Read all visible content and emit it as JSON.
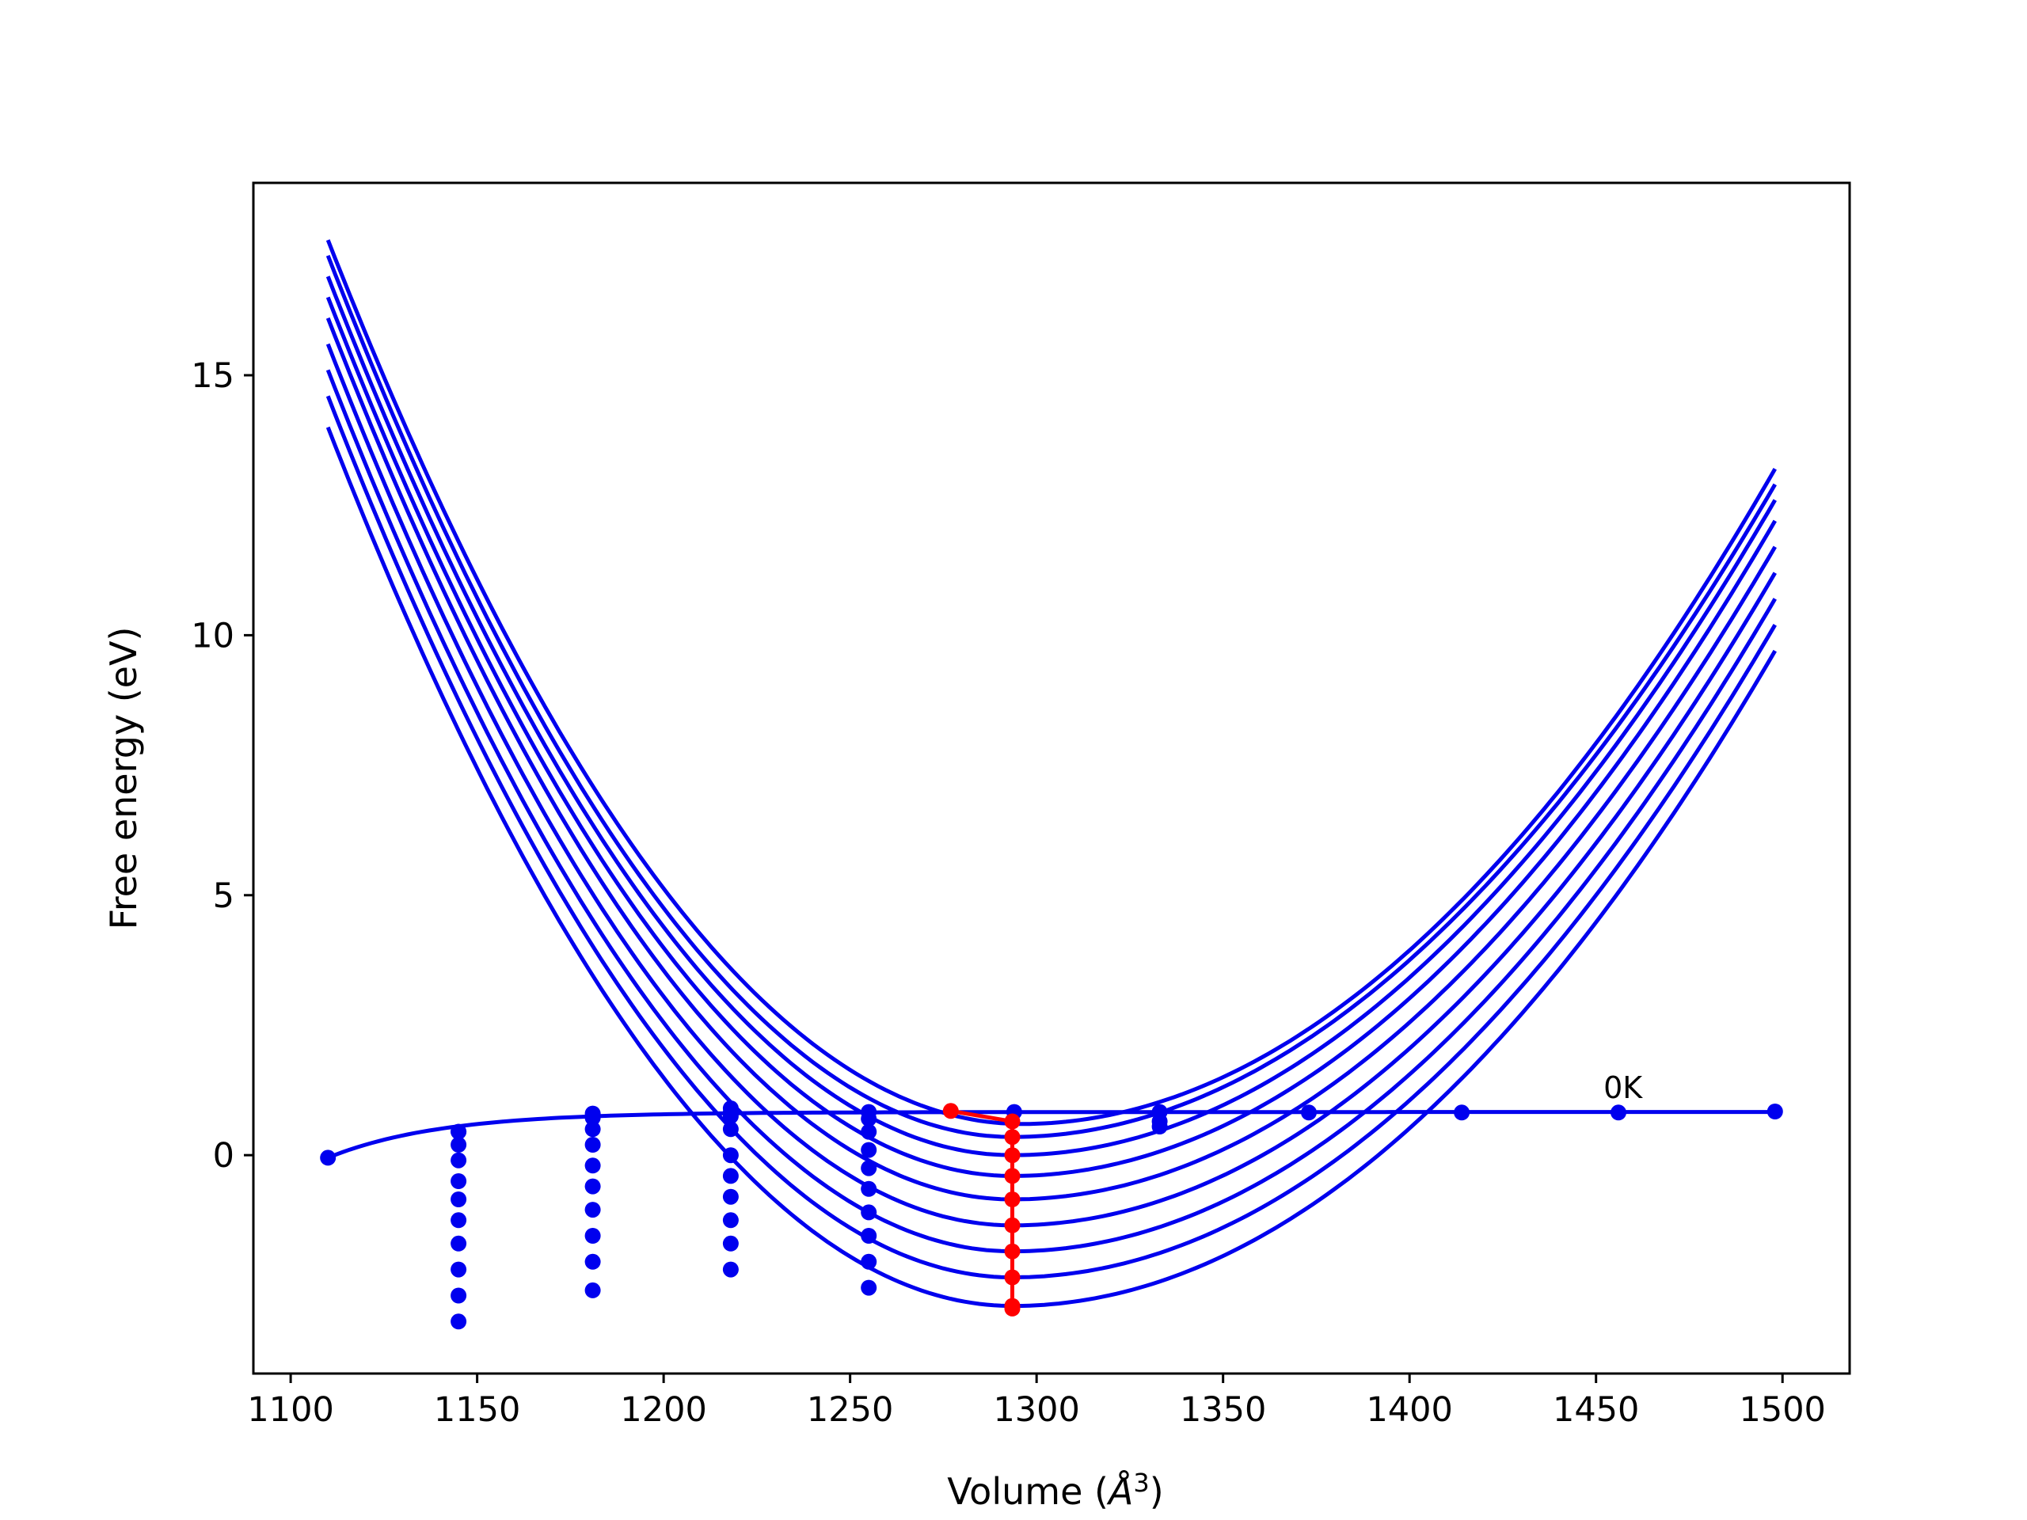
{
  "chart_data": {
    "type": "line",
    "title": "",
    "xlabel": {
      "prefix": "Volume (",
      "unit_base": "Å",
      "unit_sup": "3",
      "suffix": ")"
    },
    "ylabel": "Free energy (eV)",
    "xlim": [
      1090,
      1518
    ],
    "ylim": [
      -4.2,
      18.7
    ],
    "xticks": [
      1100,
      1150,
      1200,
      1250,
      1300,
      1350,
      1400,
      1450,
      1500
    ],
    "yticks": [
      0,
      5,
      10,
      15
    ],
    "grid": false,
    "legend": "none",
    "annotation": {
      "text": "0K",
      "x": 1452,
      "y": 1.1
    },
    "colors": {
      "curves": "#0000ee",
      "minimum_path": "#ff0000",
      "axes": "#000000"
    },
    "curve_fits": {
      "x_range": [
        1110,
        1498
      ],
      "left_values_at_1110": [
        14.0,
        14.6,
        15.1,
        15.6,
        16.1,
        16.5,
        16.9,
        17.3,
        17.6
      ],
      "right_values_at_1498": [
        9.7,
        10.2,
        10.7,
        11.2,
        11.7,
        12.2,
        12.6,
        12.9,
        13.2
      ],
      "minima_volume": [
        1293.5,
        1293.5,
        1293.5,
        1293.5,
        1293.5,
        1293.5,
        1293.5,
        1293.5,
        1296
      ],
      "minima_energy": [
        -2.9,
        -2.35,
        -1.85,
        -1.35,
        -0.85,
        -0.4,
        0.0,
        0.35,
        0.6
      ]
    },
    "series": [
      {
        "name": "0K",
        "style": "line-points",
        "x": [
          1110,
          1145,
          1181,
          1218,
          1255,
          1294,
          1333,
          1373,
          1414,
          1456,
          1498
        ],
        "y": [
          -0.05,
          0.45,
          0.72,
          0.82,
          0.83,
          0.83,
          0.83,
          0.82,
          0.82,
          0.82,
          0.84
        ]
      },
      {
        "name": "samples-1145",
        "style": "points",
        "x": 1145,
        "y": [
          0.45,
          0.2,
          -0.1,
          -0.5,
          -0.85,
          -1.25,
          -1.7,
          -2.2,
          -2.7,
          -3.2
        ]
      },
      {
        "name": "samples-1181",
        "style": "points",
        "x": 1181,
        "y": [
          0.8,
          0.5,
          0.2,
          -0.2,
          -0.6,
          -1.05,
          -1.55,
          -2.05,
          -2.6
        ]
      },
      {
        "name": "samples-1218",
        "style": "points",
        "x": 1218,
        "y": [
          0.9,
          0.75,
          0.5,
          0.0,
          -0.4,
          -0.8,
          -1.25,
          -1.7,
          -2.2
        ]
      },
      {
        "name": "samples-1255",
        "style": "points",
        "x": 1255,
        "y": [
          0.7,
          0.45,
          0.1,
          -0.25,
          -0.65,
          -1.1,
          -1.55,
          -2.05,
          -2.55
        ]
      },
      {
        "name": "samples-1333",
        "style": "points",
        "x": 1333,
        "y": [
          0.65,
          0.55
        ]
      },
      {
        "name": "minimum-path",
        "style": "line-points",
        "x": [
          1277,
          1293.5,
          1293.5,
          1293.5,
          1293.5,
          1293.5,
          1293.5,
          1293.5,
          1293.5,
          1293.5,
          1293.5
        ],
        "y": [
          0.85,
          0.65,
          0.35,
          0.0,
          -0.4,
          -0.85,
          -1.35,
          -1.85,
          -2.35,
          -2.9,
          -2.95
        ]
      }
    ]
  }
}
